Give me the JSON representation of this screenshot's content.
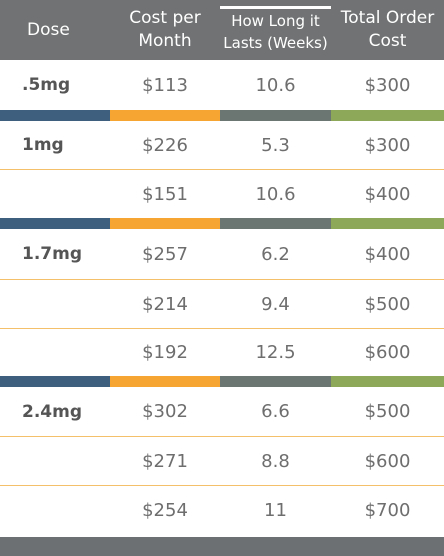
{
  "header": {
    "dose": "Dose",
    "cost": "Cost per Month",
    "lasts": "How Long it Lasts (Weeks)",
    "total": "Total Order Cost"
  },
  "colors": {
    "header_bg": "#707273",
    "blue": "#3e5f7e",
    "orange": "#f6a532",
    "gray": "#6b7572",
    "green": "#8ea85a",
    "row_separator": "#f4c06a"
  },
  "rows": [
    {
      "dose": ".5mg",
      "cost": "$113",
      "weeks": "10.6",
      "total": "$300"
    },
    {
      "dose": "1mg",
      "cost": "$226",
      "weeks": "5.3",
      "total": "$300"
    },
    {
      "dose": "",
      "cost": "$151",
      "weeks": "10.6",
      "total": "$400"
    },
    {
      "dose": "1.7mg",
      "cost": "$257",
      "weeks": "6.2",
      "total": "$400"
    },
    {
      "dose": "",
      "cost": "$214",
      "weeks": "9.4",
      "total": "$500"
    },
    {
      "dose": "",
      "cost": "$192",
      "weeks": "12.5",
      "total": "$600"
    },
    {
      "dose": "2.4mg",
      "cost": "$302",
      "weeks": "6.6",
      "total": "$500"
    },
    {
      "dose": "",
      "cost": "$271",
      "weeks": "8.8",
      "total": "$600"
    },
    {
      "dose": "",
      "cost": "$254",
      "weeks": "11",
      "total": "$700"
    }
  ]
}
